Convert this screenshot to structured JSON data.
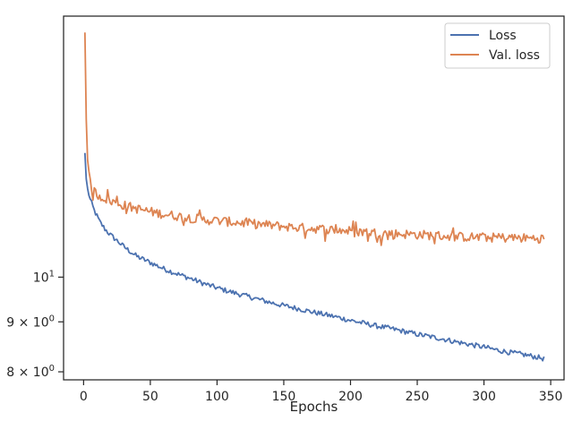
{
  "chart_data": {
    "type": "line",
    "title": "",
    "xlabel": "Epochs",
    "ylabel": "",
    "xlim": [
      -15,
      360
    ],
    "ylim": [
      7.85,
      18.5
    ],
    "yscale": "log",
    "grid": false,
    "legend_position": "top-right",
    "xticks": [
      {
        "value": 0,
        "label": "0"
      },
      {
        "value": 50,
        "label": "50"
      },
      {
        "value": 100,
        "label": "100"
      },
      {
        "value": 150,
        "label": "150"
      },
      {
        "value": 200,
        "label": "200"
      },
      {
        "value": 250,
        "label": "250"
      },
      {
        "value": 300,
        "label": "300"
      },
      {
        "value": 350,
        "label": "350"
      }
    ],
    "yticks": [
      {
        "value": 8,
        "base": "8",
        "op": "×",
        "exp_base": "10",
        "exp": "0"
      },
      {
        "value": 9,
        "base": "9",
        "op": "×",
        "exp_base": "10",
        "exp": "0"
      },
      {
        "value": 10,
        "base": "",
        "op": "",
        "exp_base": "10",
        "exp": "1"
      }
    ],
    "series": [
      {
        "name": "Loss",
        "color": "#4c72b0",
        "points": [
          [
            1,
            13.4
          ],
          [
            2,
            12.6
          ],
          [
            3,
            12.3
          ],
          [
            5,
            12.0
          ],
          [
            8,
            11.7
          ],
          [
            12,
            11.4
          ],
          [
            16,
            11.2
          ],
          [
            20,
            11.05
          ],
          [
            25,
            10.9
          ],
          [
            30,
            10.75
          ],
          [
            35,
            10.62
          ],
          [
            40,
            10.5
          ],
          [
            50,
            10.35
          ],
          [
            60,
            10.2
          ],
          [
            70,
            10.08
          ],
          [
            80,
            9.97
          ],
          [
            90,
            9.85
          ],
          [
            100,
            9.75
          ],
          [
            110,
            9.66
          ],
          [
            120,
            9.58
          ],
          [
            130,
            9.5
          ],
          [
            140,
            9.42
          ],
          [
            150,
            9.35
          ],
          [
            160,
            9.29
          ],
          [
            170,
            9.22
          ],
          [
            180,
            9.16
          ],
          [
            190,
            9.1
          ],
          [
            200,
            9.03
          ],
          [
            210,
            8.97
          ],
          [
            220,
            8.91
          ],
          [
            230,
            8.86
          ],
          [
            240,
            8.8
          ],
          [
            250,
            8.74
          ],
          [
            260,
            8.69
          ],
          [
            270,
            8.64
          ],
          [
            280,
            8.58
          ],
          [
            290,
            8.53
          ],
          [
            300,
            8.48
          ],
          [
            310,
            8.42
          ],
          [
            320,
            8.37
          ],
          [
            330,
            8.33
          ],
          [
            340,
            8.28
          ],
          [
            345,
            8.25
          ]
        ]
      },
      {
        "name": "Val. loss",
        "color": "#dd8452",
        "points": [
          [
            1,
            17.8
          ],
          [
            2,
            14.5
          ],
          [
            3,
            13.2
          ],
          [
            4,
            12.7
          ],
          [
            6,
            12.35
          ],
          [
            10,
            12.15
          ],
          [
            15,
            12.05
          ],
          [
            20,
            11.97
          ],
          [
            30,
            11.85
          ],
          [
            40,
            11.75
          ],
          [
            50,
            11.67
          ],
          [
            60,
            11.6
          ],
          [
            70,
            11.55
          ],
          [
            80,
            11.5
          ],
          [
            90,
            11.45
          ],
          [
            100,
            11.42
          ],
          [
            120,
            11.36
          ],
          [
            140,
            11.3
          ],
          [
            160,
            11.24
          ],
          [
            180,
            11.2
          ],
          [
            200,
            11.15
          ],
          [
            220,
            11.1
          ],
          [
            240,
            11.07
          ],
          [
            260,
            11.04
          ],
          [
            280,
            11.0
          ],
          [
            300,
            10.98
          ],
          [
            320,
            10.97
          ],
          [
            340,
            10.96
          ],
          [
            345,
            10.95
          ]
        ]
      }
    ]
  }
}
